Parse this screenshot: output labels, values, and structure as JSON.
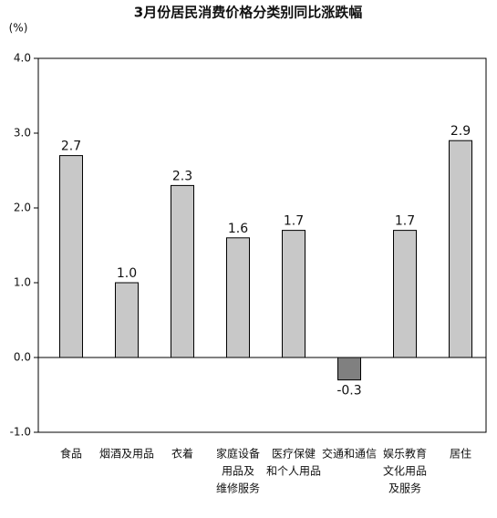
{
  "chart_data": {
    "type": "bar",
    "title": "3月份居民消费价格分类别同比涨跌幅",
    "y_label": "(%)",
    "categories": [
      [
        "食品"
      ],
      [
        "烟酒及用品"
      ],
      [
        "衣着"
      ],
      [
        "家庭设备",
        "用品及",
        "维修服务"
      ],
      [
        "医疗保健",
        "和个人用品"
      ],
      [
        "交通和通信"
      ],
      [
        "娱乐教育",
        "文化用品",
        "及服务"
      ],
      [
        "居住"
      ]
    ],
    "values": [
      2.7,
      1.0,
      2.3,
      1.6,
      1.7,
      -0.3,
      1.7,
      2.9
    ],
    "value_labels": [
      "2.7",
      "1.0",
      "2.3",
      "1.6",
      "1.7",
      "-0.3",
      "1.7",
      "2.9"
    ],
    "colors": [
      "#c8c8c8",
      "#c8c8c8",
      "#c8c8c8",
      "#c8c8c8",
      "#c8c8c8",
      "#808080",
      "#c8c8c8",
      "#c8c8c8"
    ],
    "ylim": [
      -1.0,
      4.0
    ],
    "yticks": [
      {
        "value": -1.0,
        "label": "-1.0"
      },
      {
        "value": 0,
        "label": "0.0"
      },
      {
        "value": 1.0,
        "label": "1.0"
      },
      {
        "value": 2.0,
        "label": "2.0"
      },
      {
        "value": 3.0,
        "label": "3.0"
      },
      {
        "value": 4.0,
        "label": "4.0"
      }
    ],
    "grid": false
  }
}
